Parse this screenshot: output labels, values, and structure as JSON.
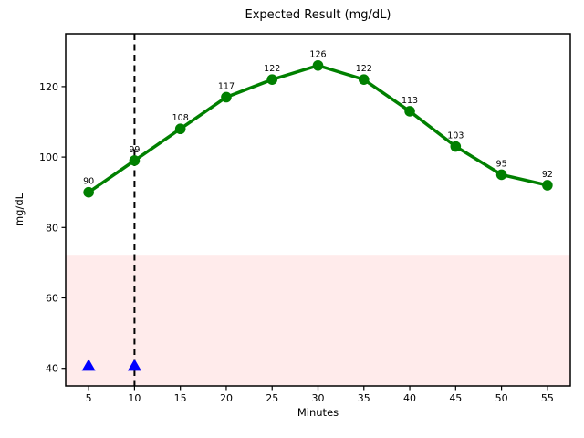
{
  "chart_data": {
    "type": "line",
    "title": "Expected Result (mg/dL)",
    "xlabel": "Minutes",
    "ylabel": "mg/dL",
    "x": [
      5,
      10,
      15,
      20,
      25,
      30,
      35,
      40,
      45,
      50,
      55
    ],
    "series": [
      {
        "name": "expected-result",
        "values": [
          90,
          99,
          108,
          117,
          122,
          126,
          122,
          113,
          103,
          95,
          92
        ],
        "color": "#008000",
        "marker": "circle",
        "line_width": 3.5,
        "marker_radius": 5.8
      }
    ],
    "point_labels": [
      "90",
      "99",
      "108",
      "117",
      "122",
      "126",
      "122",
      "113",
      "103",
      "95",
      "92"
    ],
    "extra_markers": [
      {
        "shape": "triangle-up",
        "x": 5,
        "y": 41,
        "color": "#0000ff"
      },
      {
        "shape": "triangle-up",
        "x": 10,
        "y": 41,
        "color": "#0000ff"
      }
    ],
    "vline": {
      "x": 10,
      "color": "#000000",
      "style": "dashed"
    },
    "shaded_band": {
      "ymin": 35,
      "ymax": 72,
      "fill": "rgba(255,0,0,0.08)"
    },
    "xlim": [
      2.5,
      57.5
    ],
    "ylim": [
      35,
      135
    ],
    "xticks": [
      5,
      10,
      15,
      20,
      25,
      30,
      35,
      40,
      45,
      50,
      55
    ],
    "xtick_labels": [
      "5",
      "10",
      "15",
      "20",
      "25",
      "30",
      "35",
      "40",
      "45",
      "50",
      "55"
    ],
    "yticks": [
      40,
      60,
      80,
      100,
      120
    ],
    "ytick_labels": [
      "40",
      "60",
      "80",
      "100",
      "120"
    ],
    "grid": false,
    "legend": null,
    "axis_color": "#000000",
    "background": "#ffffff"
  }
}
